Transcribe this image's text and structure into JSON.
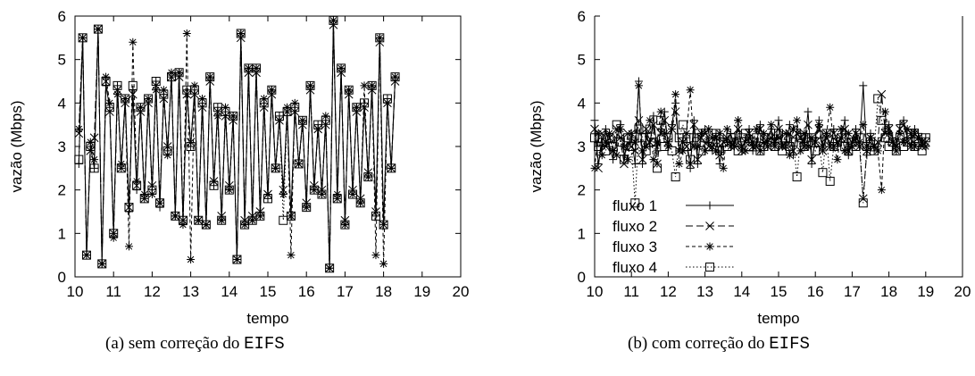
{
  "chart_data": [
    {
      "type": "line",
      "caption_prefix": "(a)  sem correção do ",
      "caption_code": "EIFS",
      "xlabel": "tempo",
      "ylabel": "vazão (Mbps)",
      "xlim": [
        10,
        20
      ],
      "ylim": [
        0,
        6
      ],
      "xticks": [
        "10",
        "11",
        "12",
        "13",
        "14",
        "15",
        "16",
        "17",
        "18",
        "19",
        "20"
      ],
      "yticks": [
        "0",
        "1",
        "2",
        "3",
        "4",
        "5",
        "6"
      ],
      "grid": false,
      "legend": "none",
      "x_step": 0.1,
      "x_start": 10.1,
      "series": [
        {
          "values": [
            2.6,
            5.5,
            0.5,
            3.0,
            2.5,
            5.7,
            0.3,
            4.4,
            3.9,
            1.0,
            4.4,
            2.5,
            4.1,
            1.5,
            4.3,
            2.0,
            3.9,
            1.8,
            4.1,
            2.0,
            4.5,
            1.6,
            4.2,
            2.9,
            4.6,
            1.4,
            4.7,
            1.3,
            4.3,
            3.0,
            4.3,
            1.3,
            4.0,
            1.2,
            4.6,
            2.1,
            3.9,
            1.3,
            3.8,
            2.0,
            3.7,
            0.4,
            5.6,
            1.2,
            4.8,
            1.3,
            4.8,
            1.4,
            4.0,
            1.8,
            4.3,
            2.5,
            3.7,
            1.9,
            3.8,
            1.4,
            3.9,
            2.6,
            3.6,
            1.6,
            4.4,
            2.0,
            3.5,
            1.9,
            3.6,
            0.2,
            5.9,
            1.8,
            4.8,
            1.2,
            4.3,
            1.9,
            3.9,
            1.7,
            4.0,
            2.3,
            4.4,
            1.4,
            5.5,
            1.2,
            4.1,
            2.5,
            4.6
          ]
        },
        {
          "values": [
            3.3,
            5.5,
            0.5,
            2.9,
            3.2,
            5.7,
            0.3,
            4.5,
            3.8,
            1.0,
            4.3,
            2.5,
            4.0,
            1.6,
            4.2,
            2.1,
            3.8,
            1.8,
            4.0,
            2.1,
            4.4,
            1.7,
            4.1,
            3.0,
            4.6,
            1.4,
            4.6,
            1.3,
            4.2,
            3.1,
            4.2,
            1.3,
            3.9,
            1.2,
            4.5,
            2.2,
            3.8,
            1.4,
            3.7,
            2.1,
            3.6,
            0.4,
            5.5,
            1.3,
            4.7,
            1.4,
            4.7,
            1.5,
            3.9,
            1.9,
            4.2,
            2.5,
            3.6,
            2.0,
            3.8,
            1.4,
            3.8,
            2.6,
            3.5,
            1.7,
            4.3,
            2.1,
            3.4,
            2.0,
            3.5,
            0.2,
            5.8,
            1.8,
            4.7,
            1.3,
            4.2,
            2.0,
            3.8,
            1.8,
            3.9,
            2.4,
            4.3,
            1.5,
            5.4,
            1.2,
            4.0,
            2.5,
            4.5
          ]
        },
        {
          "values": [
            3.4,
            5.5,
            0.5,
            3.1,
            2.7,
            5.7,
            0.3,
            4.6,
            4.0,
            0.9,
            4.2,
            2.6,
            4.1,
            0.7,
            5.4,
            2.2,
            3.9,
            1.9,
            4.1,
            1.9,
            4.3,
            1.7,
            4.3,
            2.8,
            4.7,
            1.4,
            4.7,
            1.2,
            5.6,
            0.4,
            4.4,
            1.3,
            4.1,
            1.2,
            4.6,
            2.2,
            3.7,
            1.3,
            3.9,
            2.0,
            3.7,
            0.4,
            5.6,
            1.2,
            4.8,
            1.3,
            4.8,
            1.4,
            4.1,
            1.9,
            4.3,
            2.5,
            3.6,
            1.9,
            3.9,
            0.5,
            4.0,
            2.6,
            3.6,
            1.6,
            4.4,
            2.0,
            3.4,
            1.9,
            3.7,
            0.2,
            5.9,
            1.9,
            4.8,
            1.2,
            4.3,
            1.9,
            3.9,
            1.7,
            4.4,
            2.3,
            4.4,
            0.5,
            5.5,
            0.3,
            4.0,
            2.5,
            4.6
          ]
        },
        {
          "values": [
            2.7,
            5.5,
            0.5,
            3.0,
            2.5,
            5.7,
            0.3,
            4.5,
            3.9,
            1.0,
            4.4,
            2.5,
            4.1,
            1.6,
            4.4,
            2.1,
            3.9,
            1.8,
            4.1,
            2.0,
            4.5,
            1.7,
            4.2,
            2.9,
            4.6,
            1.4,
            4.7,
            1.3,
            4.3,
            3.0,
            4.3,
            1.3,
            4.0,
            1.2,
            4.6,
            2.1,
            3.9,
            1.3,
            3.8,
            2.0,
            3.7,
            0.4,
            5.6,
            1.2,
            4.8,
            1.3,
            4.8,
            1.4,
            4.0,
            1.8,
            4.3,
            2.5,
            3.7,
            1.3,
            3.8,
            1.4,
            3.9,
            2.6,
            3.6,
            1.6,
            4.4,
            2.0,
            3.5,
            1.9,
            3.6,
            0.2,
            5.9,
            1.8,
            4.8,
            1.2,
            4.3,
            1.9,
            3.9,
            1.7,
            4.0,
            2.3,
            4.4,
            1.4,
            5.5,
            1.2,
            4.1,
            2.5,
            4.6
          ]
        }
      ]
    },
    {
      "type": "line",
      "caption_prefix": "(b)  com correção do ",
      "caption_code": "EIFS",
      "xlabel": "tempo",
      "ylabel": "vazão (Mbps)",
      "xlim": [
        10,
        20
      ],
      "ylim": [
        0,
        6
      ],
      "xticks": [
        "10",
        "11",
        "12",
        "13",
        "14",
        "15",
        "16",
        "17",
        "18",
        "19",
        "20"
      ],
      "yticks": [
        "0",
        "1",
        "2",
        "3",
        "4",
        "5",
        "6"
      ],
      "grid": false,
      "legend": "bottom-left",
      "x_step": 0.1,
      "x_start": 10.0,
      "series": [
        {
          "name": "fluxo 1",
          "values": [
            3.6,
            2.6,
            3.1,
            3.4,
            3.0,
            2.7,
            3.2,
            3.5,
            2.8,
            3.0,
            3.2,
            2.6,
            4.5,
            2.6,
            3.3,
            3.0,
            3.7,
            2.9,
            3.4,
            3.8,
            3.0,
            3.5,
            4.0,
            2.9,
            3.2,
            3.2,
            2.5,
            3.6,
            2.6,
            3.3,
            3.4,
            3.1,
            2.9,
            3.3,
            2.6,
            3.2,
            3.1,
            3.3,
            3.0,
            3.6,
            2.9,
            3.2,
            3.4,
            2.9,
            3.1,
            3.5,
            3.0,
            3.2,
            3.4,
            3.0,
            3.6,
            3.0,
            3.1,
            3.5,
            2.8,
            3.4,
            3.3,
            3.0,
            3.8,
            2.6,
            3.2,
            3.6,
            2.9,
            3.3,
            3.0,
            3.4,
            3.0,
            3.2,
            3.6,
            2.8,
            3.1,
            3.4,
            3.0,
            4.4,
            2.8,
            3.3,
            2.9,
            3.0,
            3.2,
            3.4,
            3.5,
            3.2,
            3.0,
            3.5,
            3.6,
            3.2,
            3.0,
            3.4,
            3.3,
            3.1,
            3.2
          ]
        },
        {
          "name": "fluxo 2",
          "values": [
            3.4,
            2.5,
            3.3,
            3.0,
            3.2,
            2.9,
            3.4,
            3.2,
            2.6,
            3.3,
            3.0,
            2.9,
            3.6,
            2.7,
            3.4,
            3.1,
            3.5,
            2.6,
            3.3,
            3.6,
            3.1,
            3.4,
            3.8,
            2.9,
            3.1,
            3.0,
            2.6,
            3.5,
            2.7,
            3.2,
            3.3,
            3.0,
            3.0,
            3.2,
            2.8,
            3.1,
            3.2,
            3.1,
            3.0,
            3.4,
            2.9,
            3.1,
            3.3,
            3.0,
            3.0,
            3.4,
            3.1,
            3.1,
            3.2,
            3.0,
            3.4,
            3.0,
            3.0,
            3.3,
            2.9,
            3.3,
            3.2,
            3.0,
            3.5,
            2.7,
            3.1,
            3.4,
            2.9,
            3.2,
            3.0,
            3.3,
            3.1,
            3.2,
            3.4,
            2.9,
            3.1,
            3.3,
            3.0,
            1.8,
            2.9,
            3.2,
            3.0,
            3.1,
            4.2,
            3.3,
            3.4,
            3.1,
            3.0,
            3.4,
            3.5,
            3.1,
            3.0,
            3.3,
            3.2,
            3.0,
            3.1
          ]
        },
        {
          "name": "fluxo 3",
          "values": [
            2.5,
            3.3,
            2.8,
            3.1,
            3.3,
            2.9,
            2.8,
            3.4,
            3.0,
            2.7,
            3.3,
            3.1,
            4.4,
            2.9,
            3.0,
            3.6,
            2.7,
            3.1,
            3.8,
            3.3,
            3.0,
            3.4,
            4.2,
            2.6,
            2.9,
            3.3,
            4.3,
            3.0,
            3.0,
            3.3,
            2.9,
            3.4,
            3.2,
            2.9,
            3.3,
            2.5,
            3.4,
            3.0,
            3.1,
            3.6,
            3.0,
            2.9,
            3.2,
            3.1,
            3.4,
            2.9,
            3.3,
            3.0,
            3.5,
            3.1,
            3.2,
            3.0,
            3.3,
            2.8,
            3.4,
            3.6,
            2.9,
            3.3,
            3.0,
            3.2,
            3.1,
            3.5,
            3.0,
            3.3,
            3.9,
            3.0,
            2.7,
            3.4,
            2.9,
            3.3,
            3.0,
            3.2,
            3.1,
            3.5,
            3.0,
            3.2,
            3.0,
            2.9,
            2.0,
            3.8,
            3.3,
            3.1,
            2.9,
            3.3,
            3.1,
            3.4,
            3.3,
            3.0,
            3.2,
            3.1,
            3.0
          ]
        },
        {
          "name": "fluxo 4",
          "values": [
            3.2,
            3.0,
            3.1,
            2.9,
            3.2,
            3.0,
            3.5,
            3.1,
            2.7,
            3.2,
            3.0,
            1.7,
            3.4,
            3.2,
            2.9,
            3.4,
            3.1,
            2.5,
            3.6,
            3.0,
            3.2,
            2.9,
            2.3,
            3.2,
            3.5,
            3.0,
            2.7,
            3.2,
            3.3,
            2.9,
            3.2,
            3.0,
            3.1,
            3.3,
            2.9,
            3.1,
            3.0,
            3.2,
            3.1,
            2.9,
            3.2,
            3.3,
            3.0,
            3.1,
            3.2,
            2.9,
            3.0,
            3.2,
            3.1,
            3.0,
            3.3,
            2.9,
            3.2,
            3.0,
            3.1,
            2.3,
            3.2,
            3.0,
            3.1,
            3.2,
            2.9,
            3.1,
            2.4,
            3.3,
            2.2,
            3.0,
            3.1,
            3.2,
            3.0,
            2.9,
            3.1,
            3.0,
            3.2,
            1.7,
            3.0,
            3.1,
            2.9,
            4.1,
            3.6,
            3.2,
            3.0,
            3.1,
            2.9,
            3.2,
            3.0,
            3.1,
            3.3,
            3.0,
            3.1,
            2.9,
            3.2
          ]
        }
      ]
    }
  ]
}
